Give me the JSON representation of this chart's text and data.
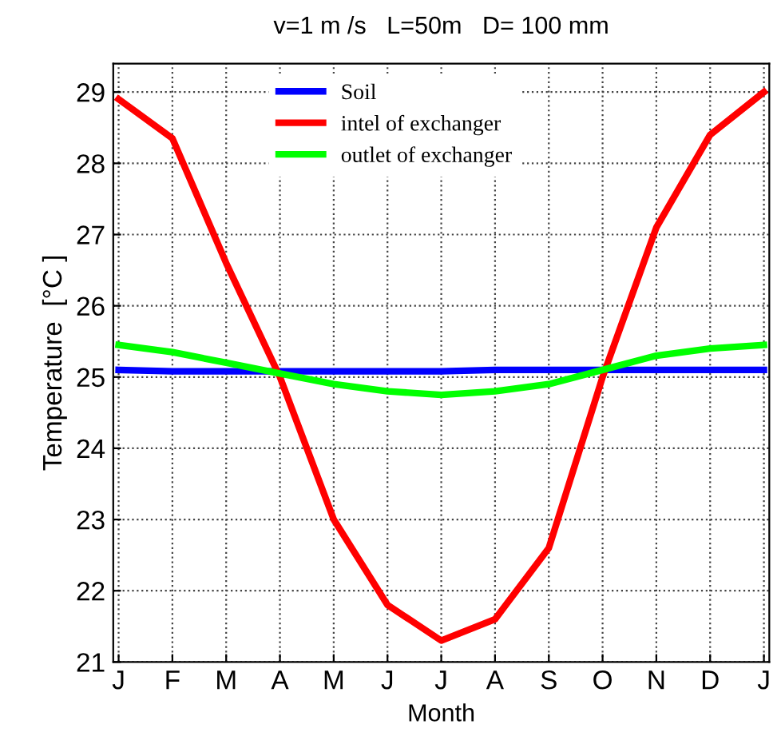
{
  "chart_data": {
    "type": "line",
    "title": "v=1 m /s   L=50m   D= 100 mm",
    "xlabel": "Month",
    "ylabel": "Temperature  [°C ]",
    "categories": [
      "J",
      "F",
      "M",
      "A",
      "M",
      "J",
      "J",
      "A",
      "S",
      "O",
      "N",
      "D",
      "J"
    ],
    "ylim": [
      21,
      29.4
    ],
    "yticks": [
      21,
      22,
      23,
      24,
      25,
      26,
      27,
      28,
      29
    ],
    "grid": true,
    "legend": "top",
    "line_style": "solid",
    "series": [
      {
        "name": "Soil",
        "color": "#0000ff",
        "values": [
          25.1,
          25.08,
          25.08,
          25.08,
          25.08,
          25.08,
          25.08,
          25.1,
          25.1,
          25.1,
          25.1,
          25.1,
          25.1
        ]
      },
      {
        "name": "intel of exchanger",
        "color": "#ff0000",
        "values": [
          28.9,
          28.35,
          26.6,
          25.0,
          23.0,
          21.8,
          21.3,
          21.6,
          22.6,
          25.0,
          27.1,
          28.4,
          29.0
        ]
      },
      {
        "name": "outlet of exchanger",
        "color": "#00ff00",
        "values": [
          25.45,
          25.35,
          25.2,
          25.05,
          24.9,
          24.8,
          24.75,
          24.8,
          24.9,
          25.1,
          25.3,
          25.4,
          25.45
        ]
      }
    ]
  }
}
